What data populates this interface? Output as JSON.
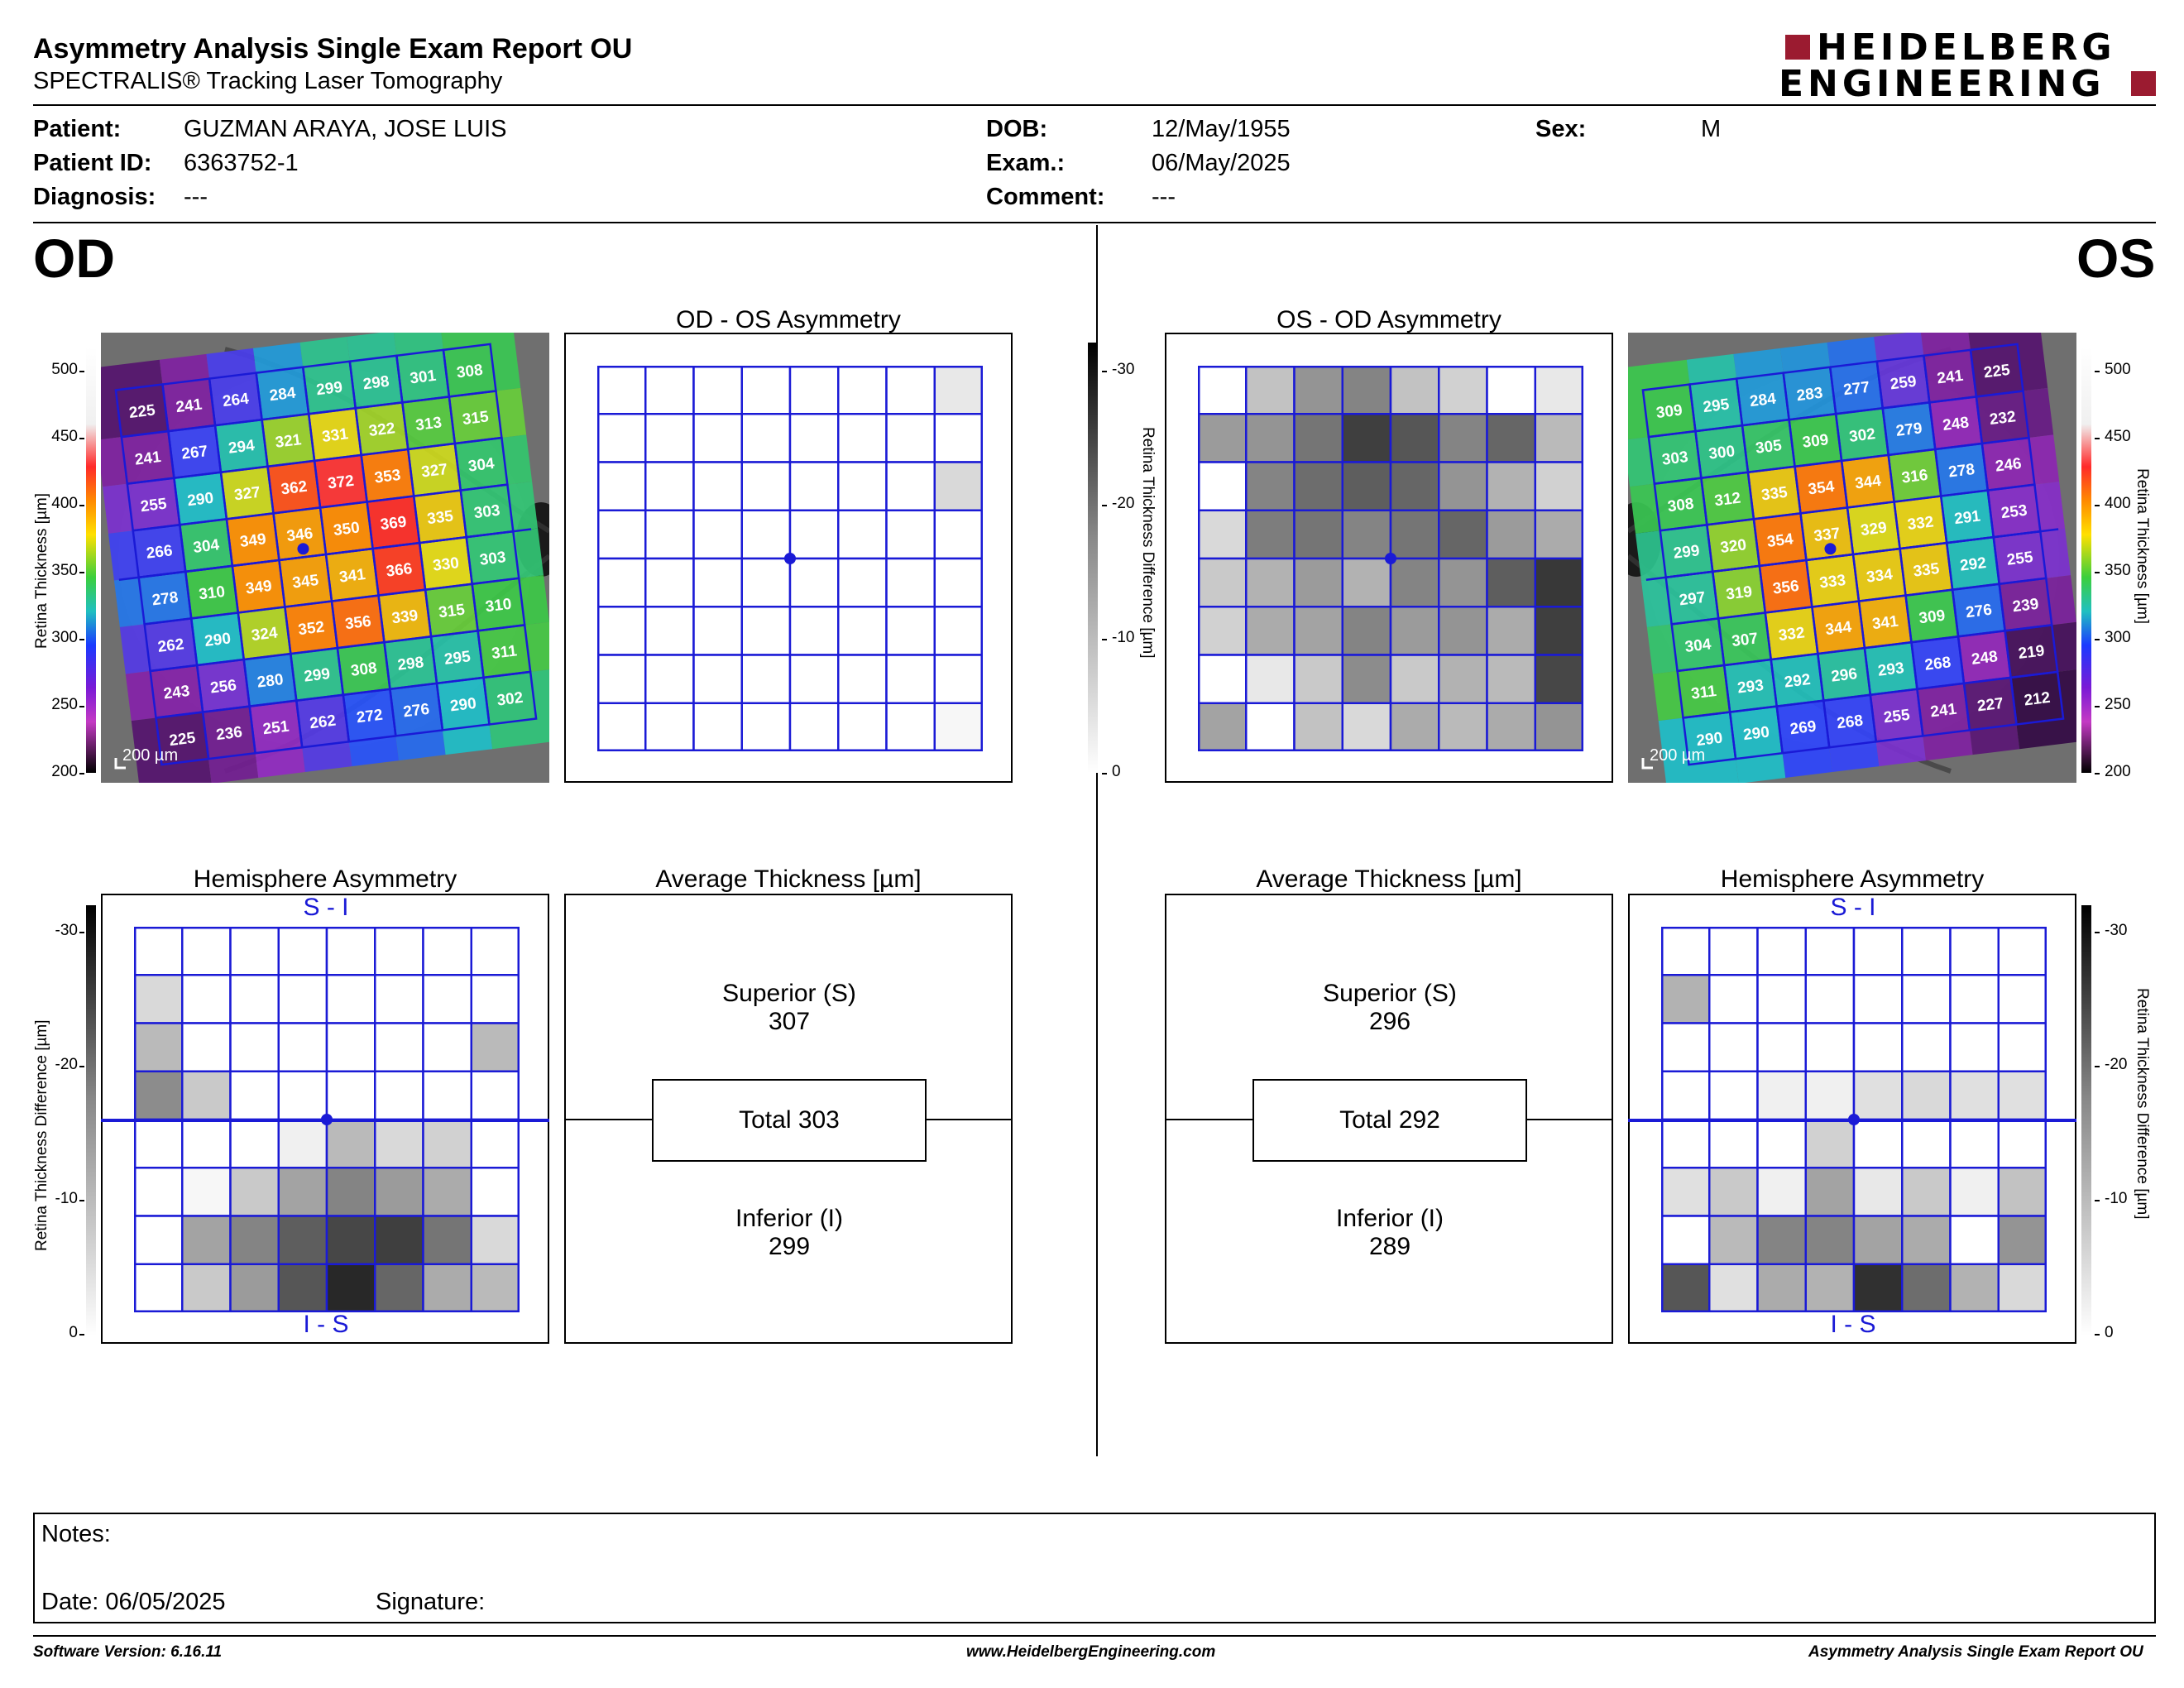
{
  "header": {
    "title": "Asymmetry Analysis Single Exam Report OU",
    "subtitle": "SPECTRALIS® Tracking Laser Tomography",
    "logo_line1": "HEIDELBERG",
    "logo_line2": "ENGINEERING",
    "brand_color": "#9b1b30"
  },
  "patient": {
    "patient_label": "Patient:",
    "patient_value": "GUZMAN ARAYA, JOSE LUIS",
    "id_label": "Patient ID:",
    "id_value": "6363752-1",
    "diagnosis_label": "Diagnosis:",
    "diagnosis_value": "---",
    "dob_label": "DOB:",
    "dob_value": "12/May/1955",
    "exam_label": "Exam.:",
    "exam_value": "06/May/2025",
    "comment_label": "Comment:",
    "comment_value": "---",
    "sex_label": "Sex:",
    "sex_value": "M"
  },
  "od": {
    "eye_label": "OD",
    "asym_title": "OD - OS Asymmetry",
    "hemi_title": "Hemisphere Asymmetry",
    "avg_title": "Average Thickness [µm]",
    "hemi_top": "S - I",
    "hemi_bottom": "I - S",
    "superior_label": "Superior (S)",
    "superior_value": "307",
    "total_label": "Total 303",
    "inferior_label": "Inferior (I)",
    "inferior_value": "299",
    "scale_label": "200 µm",
    "thickness_grid": [
      [
        225,
        241,
        264,
        284,
        299,
        298,
        301,
        308
      ],
      [
        241,
        267,
        294,
        321,
        331,
        322,
        313,
        315
      ],
      [
        255,
        290,
        327,
        362,
        372,
        353,
        327,
        304
      ],
      [
        266,
        304,
        349,
        346,
        350,
        369,
        335,
        303
      ],
      [
        278,
        310,
        349,
        345,
        341,
        366,
        330,
        303
      ],
      [
        262,
        290,
        324,
        352,
        356,
        339,
        315,
        310
      ],
      [
        243,
        256,
        280,
        299,
        308,
        298,
        295,
        311
      ],
      [
        225,
        236,
        251,
        262,
        272,
        276,
        290,
        302
      ]
    ],
    "asym_grid": [
      [
        0,
        0,
        0,
        0,
        0,
        0,
        0,
        3
      ],
      [
        0,
        0,
        0,
        0,
        0,
        0,
        0,
        0
      ],
      [
        0,
        0,
        0,
        0,
        0,
        0,
        0,
        5
      ],
      [
        0,
        0,
        0,
        0,
        0,
        0,
        0,
        0
      ],
      [
        0,
        0,
        0,
        0,
        0,
        0,
        0,
        0
      ],
      [
        0,
        0,
        0,
        0,
        0,
        0,
        0,
        0
      ],
      [
        0,
        0,
        0,
        0,
        0,
        0,
        0,
        0
      ],
      [
        0,
        0,
        0,
        0,
        0,
        0,
        0,
        1
      ]
    ],
    "hemi_grid": [
      [
        0,
        0,
        0,
        0,
        0,
        0,
        0,
        0
      ],
      [
        5,
        0,
        0,
        0,
        0,
        0,
        0,
        0
      ],
      [
        9,
        0,
        0,
        0,
        0,
        0,
        0,
        9
      ],
      [
        15,
        7,
        0,
        0,
        0,
        0,
        0,
        0
      ],
      [
        0,
        0,
        0,
        2,
        9,
        5,
        6,
        0
      ],
      [
        0,
        1,
        7,
        12,
        16,
        13,
        11,
        0
      ],
      [
        0,
        12,
        16,
        21,
        24,
        25,
        18,
        5
      ],
      [
        0,
        7,
        13,
        22,
        28,
        20,
        11,
        9
      ]
    ]
  },
  "os": {
    "eye_label": "OS",
    "asym_title": "OS - OD Asymmetry",
    "hemi_title": "Hemisphere Asymmetry",
    "avg_title": "Average Thickness [µm]",
    "hemi_top": "S - I",
    "hemi_bottom": "I - S",
    "superior_label": "Superior (S)",
    "superior_value": "296",
    "total_label": "Total 292",
    "inferior_label": "Inferior (I)",
    "inferior_value": "289",
    "scale_label": "200 µm",
    "thickness_grid": [
      [
        309,
        295,
        284,
        283,
        277,
        259,
        241,
        225
      ],
      [
        303,
        300,
        305,
        309,
        302,
        279,
        248,
        232
      ],
      [
        308,
        312,
        335,
        354,
        344,
        316,
        278,
        246
      ],
      [
        299,
        320,
        354,
        337,
        329,
        332,
        291,
        253
      ],
      [
        297,
        319,
        356,
        333,
        334,
        335,
        292,
        255
      ],
      [
        304,
        307,
        332,
        344,
        341,
        309,
        276,
        239
      ],
      [
        311,
        293,
        292,
        296,
        293,
        268,
        248,
        219
      ],
      [
        290,
        290,
        269,
        268,
        255,
        241,
        227,
        212
      ]
    ],
    "asym_grid": [
      [
        0,
        8,
        14,
        16,
        8,
        6,
        0,
        3
      ],
      [
        13,
        14,
        18,
        25,
        22,
        16,
        20,
        9
      ],
      [
        0,
        16,
        19,
        21,
        20,
        14,
        10,
        6
      ],
      [
        5,
        17,
        18,
        16,
        18,
        20,
        13,
        11
      ],
      [
        7,
        10,
        13,
        10,
        16,
        14,
        21,
        26
      ],
      [
        6,
        11,
        12,
        16,
        13,
        14,
        11,
        25
      ],
      [
        0,
        3,
        7,
        15,
        7,
        10,
        9,
        24
      ],
      [
        12,
        0,
        8,
        5,
        11,
        9,
        11,
        14
      ]
    ],
    "hemi_grid": [
      [
        0,
        0,
        0,
        0,
        0,
        0,
        0,
        0
      ],
      [
        10,
        0,
        0,
        0,
        0,
        0,
        0,
        0
      ],
      [
        0,
        0,
        0,
        0,
        0,
        0,
        0,
        0
      ],
      [
        0,
        0,
        2,
        2,
        4,
        5,
        4,
        4
      ],
      [
        0,
        0,
        0,
        6,
        0,
        0,
        0,
        0
      ],
      [
        4,
        7,
        2,
        12,
        3,
        7,
        2,
        8
      ],
      [
        0,
        9,
        16,
        16,
        12,
        11,
        0,
        14
      ],
      [
        22,
        4,
        11,
        10,
        27,
        19,
        10,
        5
      ]
    ]
  },
  "colorbars": {
    "thickness_ticks": [
      "500",
      "450",
      "400",
      "350",
      "300",
      "250",
      "200"
    ],
    "thickness_label": "Retina Thickness [µm]",
    "diff_ticks": [
      "-30",
      "-20",
      "-10",
      "0"
    ],
    "diff_label": "Retina Thickness Difference [µm]"
  },
  "notes": {
    "notes_label": "Notes:",
    "date_label": "Date: 06/05/2025",
    "signature_label": "Signature:"
  },
  "footer": {
    "software": "Software Version: 6.16.11",
    "website": "www.HeidelbergEngineering.com",
    "report": "Asymmetry Analysis Single Exam Report OU"
  }
}
